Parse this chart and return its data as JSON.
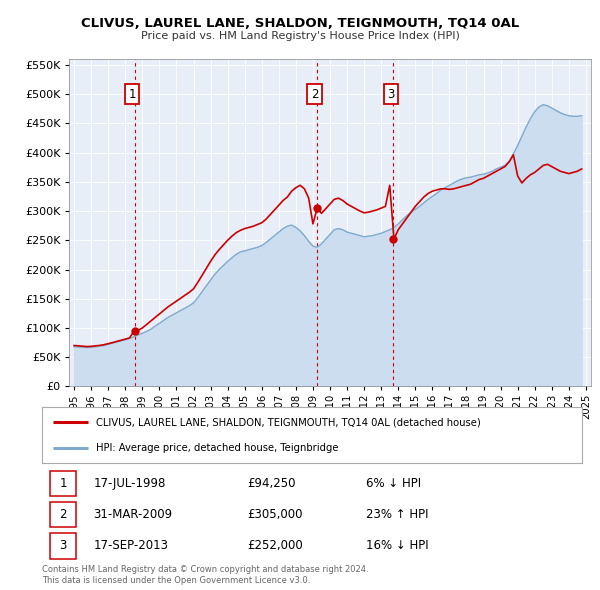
{
  "title": "CLIVUS, LAUREL LANE, SHALDON, TEIGNMOUTH, TQ14 0AL",
  "subtitle": "Price paid vs. HM Land Registry's House Price Index (HPI)",
  "legend_line1": "CLIVUS, LAUREL LANE, SHALDON, TEIGNMOUTH, TQ14 0AL (detached house)",
  "legend_line2": "HPI: Average price, detached house, Teignbridge",
  "footer1": "Contains HM Land Registry data © Crown copyright and database right 2024.",
  "footer2": "This data is licensed under the Open Government Licence v3.0.",
  "sale_color": "#cc0000",
  "hpi_color": "#7faacc",
  "hpi_fill_color": "#ccddef",
  "plot_bg_color": "#e8eef8",
  "ylim": [
    0,
    560000
  ],
  "yticks": [
    0,
    50000,
    100000,
    150000,
    200000,
    250000,
    300000,
    350000,
    400000,
    450000,
    500000,
    550000
  ],
  "xlim_start": 1994.7,
  "xlim_end": 2025.3,
  "transactions": [
    {
      "num": 1,
      "date_x": 1998.54,
      "price": 94250
    },
    {
      "num": 2,
      "date_x": 2009.25,
      "price": 305000
    },
    {
      "num": 3,
      "date_x": 2013.71,
      "price": 252000
    }
  ],
  "transactions_table": [
    {
      "num": 1,
      "date": "17-JUL-1998",
      "price": "£94,250",
      "pct": "6% ↓ HPI"
    },
    {
      "num": 2,
      "date": "31-MAR-2009",
      "price": "£305,000",
      "pct": "23% ↑ HPI"
    },
    {
      "num": 3,
      "date": "17-SEP-2013",
      "price": "£252,000",
      "pct": "16% ↓ HPI"
    }
  ],
  "hpi_data": [
    [
      1995.0,
      68000
    ],
    [
      1995.25,
      67500
    ],
    [
      1995.5,
      67000
    ],
    [
      1995.75,
      66500
    ],
    [
      1996.0,
      67000
    ],
    [
      1996.25,
      68000
    ],
    [
      1996.5,
      69000
    ],
    [
      1996.75,
      70000
    ],
    [
      1997.0,
      72000
    ],
    [
      1997.25,
      74000
    ],
    [
      1997.5,
      76000
    ],
    [
      1997.75,
      78000
    ],
    [
      1998.0,
      80000
    ],
    [
      1998.25,
      82000
    ],
    [
      1998.5,
      85000
    ],
    [
      1998.75,
      88000
    ],
    [
      1999.0,
      91000
    ],
    [
      1999.25,
      94000
    ],
    [
      1999.5,
      98000
    ],
    [
      1999.75,
      103000
    ],
    [
      2000.0,
      108000
    ],
    [
      2000.25,
      113000
    ],
    [
      2000.5,
      118000
    ],
    [
      2000.75,
      122000
    ],
    [
      2001.0,
      126000
    ],
    [
      2001.25,
      130000
    ],
    [
      2001.5,
      134000
    ],
    [
      2001.75,
      138000
    ],
    [
      2002.0,
      143000
    ],
    [
      2002.25,
      152000
    ],
    [
      2002.5,
      162000
    ],
    [
      2002.75,
      172000
    ],
    [
      2003.0,
      182000
    ],
    [
      2003.25,
      192000
    ],
    [
      2003.5,
      200000
    ],
    [
      2003.75,
      207000
    ],
    [
      2004.0,
      214000
    ],
    [
      2004.25,
      220000
    ],
    [
      2004.5,
      226000
    ],
    [
      2004.75,
      230000
    ],
    [
      2005.0,
      232000
    ],
    [
      2005.25,
      234000
    ],
    [
      2005.5,
      236000
    ],
    [
      2005.75,
      238000
    ],
    [
      2006.0,
      241000
    ],
    [
      2006.25,
      246000
    ],
    [
      2006.5,
      252000
    ],
    [
      2006.75,
      258000
    ],
    [
      2007.0,
      264000
    ],
    [
      2007.25,
      270000
    ],
    [
      2007.5,
      274000
    ],
    [
      2007.75,
      276000
    ],
    [
      2008.0,
      272000
    ],
    [
      2008.25,
      266000
    ],
    [
      2008.5,
      258000
    ],
    [
      2008.75,
      248000
    ],
    [
      2009.0,
      240000
    ],
    [
      2009.25,
      238000
    ],
    [
      2009.5,
      244000
    ],
    [
      2009.75,
      252000
    ],
    [
      2010.0,
      260000
    ],
    [
      2010.25,
      268000
    ],
    [
      2010.5,
      270000
    ],
    [
      2010.75,
      268000
    ],
    [
      2011.0,
      264000
    ],
    [
      2011.25,
      262000
    ],
    [
      2011.5,
      260000
    ],
    [
      2011.75,
      258000
    ],
    [
      2012.0,
      256000
    ],
    [
      2012.25,
      257000
    ],
    [
      2012.5,
      258000
    ],
    [
      2012.75,
      260000
    ],
    [
      2013.0,
      262000
    ],
    [
      2013.25,
      265000
    ],
    [
      2013.5,
      268000
    ],
    [
      2013.75,
      272000
    ],
    [
      2014.0,
      278000
    ],
    [
      2014.25,
      285000
    ],
    [
      2014.5,
      292000
    ],
    [
      2014.75,
      298000
    ],
    [
      2015.0,
      303000
    ],
    [
      2015.25,
      308000
    ],
    [
      2015.5,
      314000
    ],
    [
      2015.75,
      320000
    ],
    [
      2016.0,
      325000
    ],
    [
      2016.25,
      330000
    ],
    [
      2016.5,
      336000
    ],
    [
      2016.75,
      340000
    ],
    [
      2017.0,
      344000
    ],
    [
      2017.25,
      348000
    ],
    [
      2017.5,
      352000
    ],
    [
      2017.75,
      355000
    ],
    [
      2018.0,
      357000
    ],
    [
      2018.25,
      358000
    ],
    [
      2018.5,
      360000
    ],
    [
      2018.75,
      362000
    ],
    [
      2019.0,
      363000
    ],
    [
      2019.25,
      365000
    ],
    [
      2019.5,
      368000
    ],
    [
      2019.75,
      372000
    ],
    [
      2020.0,
      375000
    ],
    [
      2020.25,
      378000
    ],
    [
      2020.5,
      385000
    ],
    [
      2020.75,
      398000
    ],
    [
      2021.0,
      412000
    ],
    [
      2021.25,
      428000
    ],
    [
      2021.5,
      444000
    ],
    [
      2021.75,
      458000
    ],
    [
      2022.0,
      470000
    ],
    [
      2022.25,
      478000
    ],
    [
      2022.5,
      482000
    ],
    [
      2022.75,
      480000
    ],
    [
      2023.0,
      476000
    ],
    [
      2023.25,
      472000
    ],
    [
      2023.5,
      468000
    ],
    [
      2023.75,
      465000
    ],
    [
      2024.0,
      463000
    ],
    [
      2024.25,
      462000
    ],
    [
      2024.5,
      462000
    ],
    [
      2024.75,
      463000
    ]
  ],
  "sale_line_data": [
    [
      1995.0,
      70000
    ],
    [
      1995.25,
      69500
    ],
    [
      1995.5,
      68800
    ],
    [
      1995.75,
      68200
    ],
    [
      1996.0,
      68600
    ],
    [
      1996.25,
      69400
    ],
    [
      1996.5,
      70200
    ],
    [
      1996.75,
      71400
    ],
    [
      1997.0,
      73200
    ],
    [
      1997.25,
      75000
    ],
    [
      1997.5,
      77000
    ],
    [
      1997.75,
      79000
    ],
    [
      1998.0,
      81000
    ],
    [
      1998.25,
      83000
    ],
    [
      1998.5,
      94250
    ],
    [
      1998.75,
      96000
    ],
    [
      1999.0,
      100000
    ],
    [
      1999.25,
      106000
    ],
    [
      1999.5,
      112000
    ],
    [
      1999.75,
      118000
    ],
    [
      2000.0,
      124000
    ],
    [
      2000.25,
      130000
    ],
    [
      2000.5,
      136000
    ],
    [
      2000.75,
      141000
    ],
    [
      2001.0,
      146000
    ],
    [
      2001.25,
      151000
    ],
    [
      2001.5,
      156000
    ],
    [
      2001.75,
      161000
    ],
    [
      2002.0,
      167000
    ],
    [
      2002.25,
      178000
    ],
    [
      2002.5,
      190000
    ],
    [
      2002.75,
      202000
    ],
    [
      2003.0,
      214000
    ],
    [
      2003.25,
      225000
    ],
    [
      2003.5,
      234000
    ],
    [
      2003.75,
      242000
    ],
    [
      2004.0,
      250000
    ],
    [
      2004.25,
      257000
    ],
    [
      2004.5,
      263000
    ],
    [
      2004.75,
      267000
    ],
    [
      2005.0,
      270000
    ],
    [
      2005.25,
      272000
    ],
    [
      2005.5,
      274000
    ],
    [
      2005.75,
      277000
    ],
    [
      2006.0,
      280000
    ],
    [
      2006.25,
      286000
    ],
    [
      2006.5,
      294000
    ],
    [
      2006.75,
      302000
    ],
    [
      2007.0,
      310000
    ],
    [
      2007.25,
      318000
    ],
    [
      2007.5,
      324000
    ],
    [
      2007.75,
      334000
    ],
    [
      2008.0,
      340000
    ],
    [
      2008.25,
      344000
    ],
    [
      2008.5,
      338000
    ],
    [
      2008.75,
      322000
    ],
    [
      2009.0,
      278000
    ],
    [
      2009.25,
      305000
    ],
    [
      2009.5,
      296000
    ],
    [
      2009.75,
      304000
    ],
    [
      2010.0,
      312000
    ],
    [
      2010.25,
      320000
    ],
    [
      2010.5,
      322000
    ],
    [
      2010.75,
      318000
    ],
    [
      2011.0,
      312000
    ],
    [
      2011.25,
      308000
    ],
    [
      2011.5,
      304000
    ],
    [
      2011.75,
      300000
    ],
    [
      2012.0,
      297000
    ],
    [
      2012.25,
      298000
    ],
    [
      2012.5,
      300000
    ],
    [
      2012.75,
      302000
    ],
    [
      2013.0,
      305000
    ],
    [
      2013.25,
      308000
    ],
    [
      2013.5,
      344000
    ],
    [
      2013.75,
      252000
    ],
    [
      2014.0,
      268000
    ],
    [
      2014.25,
      278000
    ],
    [
      2014.5,
      288000
    ],
    [
      2014.75,
      298000
    ],
    [
      2015.0,
      308000
    ],
    [
      2015.25,
      316000
    ],
    [
      2015.5,
      324000
    ],
    [
      2015.75,
      330000
    ],
    [
      2016.0,
      334000
    ],
    [
      2016.25,
      336000
    ],
    [
      2016.5,
      338000
    ],
    [
      2016.75,
      338000
    ],
    [
      2017.0,
      337000
    ],
    [
      2017.25,
      338000
    ],
    [
      2017.5,
      340000
    ],
    [
      2017.75,
      342000
    ],
    [
      2018.0,
      344000
    ],
    [
      2018.25,
      346000
    ],
    [
      2018.5,
      350000
    ],
    [
      2018.75,
      354000
    ],
    [
      2019.0,
      356000
    ],
    [
      2019.25,
      360000
    ],
    [
      2019.5,
      364000
    ],
    [
      2019.75,
      368000
    ],
    [
      2020.0,
      372000
    ],
    [
      2020.25,
      376000
    ],
    [
      2020.5,
      384000
    ],
    [
      2020.75,
      396000
    ],
    [
      2021.0,
      360000
    ],
    [
      2021.25,
      348000
    ],
    [
      2021.5,
      356000
    ],
    [
      2021.75,
      362000
    ],
    [
      2022.0,
      366000
    ],
    [
      2022.25,
      372000
    ],
    [
      2022.5,
      378000
    ],
    [
      2022.75,
      380000
    ],
    [
      2023.0,
      376000
    ],
    [
      2023.25,
      372000
    ],
    [
      2023.5,
      368000
    ],
    [
      2023.75,
      366000
    ],
    [
      2024.0,
      364000
    ],
    [
      2024.25,
      366000
    ],
    [
      2024.5,
      368000
    ],
    [
      2024.75,
      372000
    ]
  ]
}
